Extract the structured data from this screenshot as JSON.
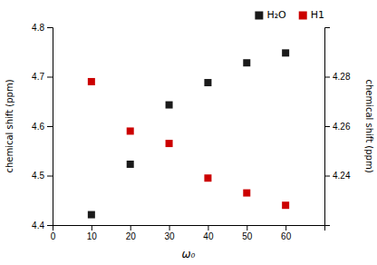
{
  "chart_data": {
    "type": "scatter",
    "x_label": "ω₀",
    "y_label": "chemical shift (ppm)",
    "y2_label": "chemical shift (ppm)",
    "x": [
      10,
      20,
      30,
      40,
      50,
      60
    ],
    "series": [
      {
        "name": "H₂O",
        "color": "#1a1a1a",
        "marker": "square",
        "values": [
          4.421,
          4.523,
          4.643,
          4.688,
          4.728,
          4.748
        ]
      },
      {
        "name": "H1",
        "color": "#cc0000",
        "marker": "square",
        "axis": "y2",
        "values": [
          4.278,
          4.258,
          4.253,
          4.239,
          4.233,
          4.228
        ]
      }
    ],
    "xlim": [
      0,
      70
    ],
    "xticks": [
      0,
      10,
      20,
      30,
      40,
      50,
      60
    ],
    "ylim": [
      4.4,
      4.8
    ],
    "yticks": [
      4.4,
      4.5,
      4.6,
      4.7,
      4.8
    ],
    "y2lim": [
      4.22,
      4.3
    ],
    "y2ticks": [
      4.24,
      4.26,
      4.28
    ],
    "grid": false,
    "legend": "upper right"
  }
}
